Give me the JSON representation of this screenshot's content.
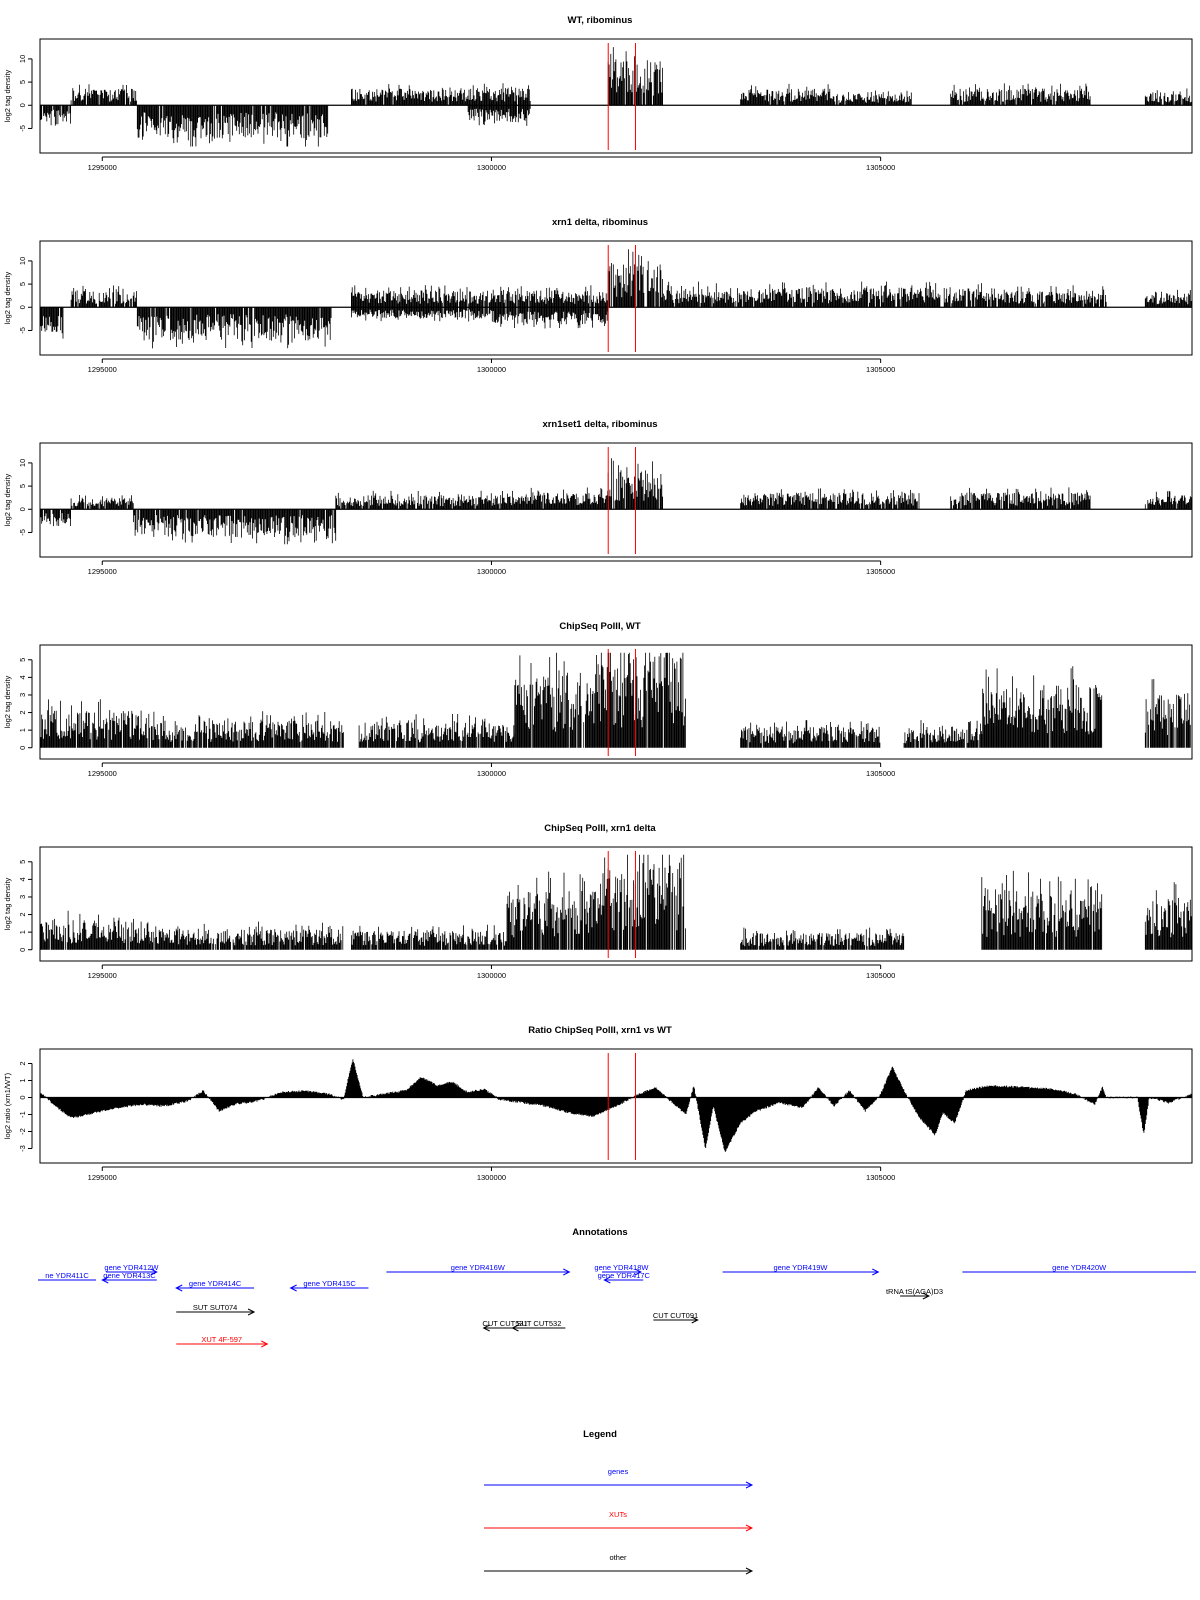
{
  "figure": {
    "panel_titles": [
      "WT, ribominus",
      "xrn1 delta, ribominus",
      "xrn1set1 delta, ribominus",
      "ChipSeq PolII, WT",
      "ChipSeq PolII, xrn1 delta",
      "Ratio ChipSeq PolII, xrn1 vs WT"
    ],
    "annotations_title": "Annotations",
    "legend_title": "Legend"
  },
  "colors": {
    "gene": "#0000ff",
    "xut": "#ff0000",
    "other": "#000000",
    "marker": "#ff0000",
    "trace": "#000000"
  },
  "chart_data": [
    {
      "type": "area",
      "title": "WT, ribominus",
      "ylabel": "log2 tag density",
      "xlim": [
        1294200,
        1309000
      ],
      "ylim": [
        -9,
        13
      ],
      "xticks": [
        1295000,
        1300000,
        1305000
      ],
      "yticks": [
        -5,
        0,
        5,
        10
      ],
      "markers_x": [
        1301500,
        1301850
      ],
      "baseline": true,
      "segments": [
        {
          "x": [
            1294200,
            1294600
          ],
          "bottom": -3
        },
        {
          "x": [
            1294600,
            1295450
          ],
          "top": 3
        },
        {
          "x": [
            1295450,
            1297900
          ],
          "bottom": -6
        },
        {
          "x": [
            1298200,
            1299700
          ],
          "top": 3
        },
        {
          "x": [
            1299700,
            1300500
          ],
          "top": 3,
          "bottom": -3
        },
        {
          "x": [
            1301500,
            1302200
          ],
          "top": 8
        },
        {
          "x": [
            1303200,
            1304400
          ],
          "top": 3
        },
        {
          "x": [
            1304400,
            1305400
          ],
          "top": 2
        },
        {
          "x": [
            1305900,
            1307700
          ],
          "top": 3
        },
        {
          "x": [
            1308400,
            1309000
          ],
          "top": 2.5
        }
      ]
    },
    {
      "type": "area",
      "title": "xrn1 delta, ribominus",
      "ylabel": "log2 tag density",
      "xlim": [
        1294200,
        1309000
      ],
      "ylim": [
        -9,
        13
      ],
      "xticks": [
        1295000,
        1300000,
        1305000
      ],
      "yticks": [
        -5,
        0,
        5,
        10
      ],
      "markers_x": [
        1301500,
        1301850
      ],
      "baseline": true,
      "segments": [
        {
          "x": [
            1294200,
            1294500
          ],
          "bottom": -5
        },
        {
          "x": [
            1294600,
            1295450
          ],
          "top": 3
        },
        {
          "x": [
            1295450,
            1297950
          ],
          "bottom": -6
        },
        {
          "x": [
            1298200,
            1300000
          ],
          "top": 3,
          "bottom": -2
        },
        {
          "x": [
            1300000,
            1301500
          ],
          "top": 3,
          "bottom": -3
        },
        {
          "x": [
            1301500,
            1302200
          ],
          "top": 8
        },
        {
          "x": [
            1302200,
            1304200
          ],
          "top": 3.5
        },
        {
          "x": [
            1304200,
            1306500
          ],
          "top": 3.5
        },
        {
          "x": [
            1306500,
            1307900
          ],
          "top": 3
        },
        {
          "x": [
            1308400,
            1309000
          ],
          "top": 2.5
        }
      ]
    },
    {
      "type": "area",
      "title": "xrn1set1 delta, ribominus",
      "ylabel": "log2 tag density",
      "xlim": [
        1294200,
        1309000
      ],
      "ylim": [
        -9,
        13
      ],
      "xticks": [
        1295000,
        1300000,
        1305000
      ],
      "yticks": [
        -5,
        0,
        5,
        10
      ],
      "markers_x": [
        1301500,
        1301850
      ],
      "baseline": true,
      "segments": [
        {
          "x": [
            1294200,
            1294600
          ],
          "bottom": -3
        },
        {
          "x": [
            1294600,
            1295400
          ],
          "top": 2
        },
        {
          "x": [
            1295400,
            1298000
          ],
          "bottom": -5
        },
        {
          "x": [
            1298000,
            1300500
          ],
          "top": 2.5
        },
        {
          "x": [
            1300500,
            1301500
          ],
          "top": 3
        },
        {
          "x": [
            1301500,
            1302200
          ],
          "top": 7
        },
        {
          "x": [
            1303200,
            1305500
          ],
          "top": 3
        },
        {
          "x": [
            1305900,
            1307700
          ],
          "top": 3
        },
        {
          "x": [
            1308400,
            1309000
          ],
          "top": 2.5
        }
      ]
    },
    {
      "type": "area",
      "title": "ChipSeq PolII, WT",
      "ylabel": "log2 tag density",
      "xlim": [
        1294200,
        1309000
      ],
      "ylim": [
        -0.3,
        5.5
      ],
      "xticks": [
        1295000,
        1300000,
        1305000
      ],
      "yticks": [
        0,
        1,
        2,
        3,
        4,
        5
      ],
      "markers_x": [
        1301500,
        1301850
      ],
      "baseline": false,
      "segments": [
        {
          "x": [
            1294200,
            1295500
          ],
          "top": 1.8
        },
        {
          "x": [
            1295500,
            1298100
          ],
          "top": 1.3
        },
        {
          "x": [
            1298300,
            1300300
          ],
          "top": 1.2
        },
        {
          "x": [
            1300300,
            1301400
          ],
          "top": 3.5
        },
        {
          "x": [
            1301400,
            1302500
          ],
          "top": 4.6
        },
        {
          "x": [
            1303200,
            1305000
          ],
          "top": 1
        },
        {
          "x": [
            1305300,
            1306300
          ],
          "top": 1
        },
        {
          "x": [
            1306300,
            1307850
          ],
          "top": 3
        },
        {
          "x": [
            1308400,
            1309000
          ],
          "top": 2.6
        }
      ]
    },
    {
      "type": "area",
      "title": "ChipSeq PolII, xrn1 delta",
      "ylabel": "log2 tag density",
      "xlim": [
        1294200,
        1309000
      ],
      "ylim": [
        -0.3,
        5.5
      ],
      "xticks": [
        1295000,
        1300000,
        1305000
      ],
      "yticks": [
        0,
        1,
        2,
        3,
        4,
        5
      ],
      "markers_x": [
        1301500,
        1301850
      ],
      "baseline": false,
      "segments": [
        {
          "x": [
            1294200,
            1295600
          ],
          "top": 1.4
        },
        {
          "x": [
            1295600,
            1298100
          ],
          "top": 1
        },
        {
          "x": [
            1298200,
            1300200
          ],
          "top": 0.9
        },
        {
          "x": [
            1300200,
            1301400
          ],
          "top": 2.8
        },
        {
          "x": [
            1301400,
            1302500
          ],
          "top": 4.2
        },
        {
          "x": [
            1303200,
            1305300
          ],
          "top": 0.8
        },
        {
          "x": [
            1306300,
            1307850
          ],
          "top": 2.9
        },
        {
          "x": [
            1308400,
            1309000
          ],
          "top": 2.4
        }
      ]
    },
    {
      "type": "area",
      "title": "Ratio ChipSeq PolII, xrn1 vs WT",
      "ylabel": "log2 ratio (xrn1/WT)",
      "xlim": [
        1294200,
        1309000
      ],
      "ylim": [
        -3.5,
        2.5
      ],
      "xticks": [
        1295000,
        1300000,
        1305000
      ],
      "yticks": [
        -3,
        -2,
        -1,
        0,
        1,
        2
      ],
      "markers_x": [
        1301500,
        1301850
      ],
      "baseline": true,
      "curve": [
        [
          1294200,
          0.3
        ],
        [
          1294400,
          -0.5
        ],
        [
          1294600,
          -1.2
        ],
        [
          1294900,
          -0.9
        ],
        [
          1295200,
          -0.6
        ],
        [
          1295500,
          -0.4
        ],
        [
          1295800,
          -0.5
        ],
        [
          1296100,
          -0.2
        ],
        [
          1296300,
          0.4
        ],
        [
          1296500,
          -0.8
        ],
        [
          1296700,
          -0.4
        ],
        [
          1297000,
          -0.2
        ],
        [
          1297300,
          0.3
        ],
        [
          1297600,
          0.4
        ],
        [
          1297900,
          0.2
        ],
        [
          1298100,
          -0.1
        ],
        [
          1298220,
          2.3
        ],
        [
          1298350,
          0.0
        ],
        [
          1298600,
          0.2
        ],
        [
          1298900,
          0.4
        ],
        [
          1299100,
          1.2
        ],
        [
          1299300,
          0.7
        ],
        [
          1299500,
          0.9
        ],
        [
          1299700,
          0.3
        ],
        [
          1299900,
          0.5
        ],
        [
          1300100,
          -0.1
        ],
        [
          1300400,
          -0.3
        ],
        [
          1300700,
          -0.5
        ],
        [
          1301000,
          -0.9
        ],
        [
          1301300,
          -1.1
        ],
        [
          1301600,
          -0.5
        ],
        [
          1301900,
          0.2
        ],
        [
          1302100,
          0.6
        ],
        [
          1302300,
          -0.2
        ],
        [
          1302500,
          -1.0
        ],
        [
          1302600,
          0.7
        ],
        [
          1302750,
          -3.0
        ],
        [
          1302850,
          -0.5
        ],
        [
          1303000,
          -3.2
        ],
        [
          1303200,
          -1.5
        ],
        [
          1303400,
          -0.8
        ],
        [
          1303700,
          -0.3
        ],
        [
          1304000,
          -0.6
        ],
        [
          1304200,
          0.6
        ],
        [
          1304400,
          -0.5
        ],
        [
          1304600,
          0.4
        ],
        [
          1304800,
          -0.8
        ],
        [
          1305000,
          0.2
        ],
        [
          1305150,
          1.8
        ],
        [
          1305300,
          0.4
        ],
        [
          1305500,
          -1.2
        ],
        [
          1305700,
          -2.2
        ],
        [
          1305800,
          -0.9
        ],
        [
          1305950,
          -1.5
        ],
        [
          1306100,
          0.4
        ],
        [
          1306400,
          0.7
        ],
        [
          1306800,
          0.6
        ],
        [
          1307200,
          0.5
        ],
        [
          1307500,
          0.2
        ],
        [
          1307750,
          -0.4
        ],
        [
          1307850,
          0.6
        ],
        [
          1307900,
          0.0
        ],
        [
          1308300,
          0.0
        ],
        [
          1308380,
          -2.2
        ],
        [
          1308450,
          0.0
        ],
        [
          1308700,
          -0.3
        ],
        [
          1309000,
          0.2
        ]
      ]
    }
  ],
  "annotations": {
    "xlim": [
      1294200,
      1309000
    ],
    "features": [
      {
        "label": "ne YDR411C",
        "kind": "gene",
        "x0": 1293900,
        "x1": 1294920,
        "dir": "none",
        "row": 0
      },
      {
        "label": "gene YDR412W",
        "kind": "gene",
        "x0": 1295050,
        "x1": 1295700,
        "dir": "right",
        "row": -1
      },
      {
        "label": "gene YDR413C",
        "kind": "gene",
        "x0": 1295000,
        "x1": 1295700,
        "dir": "left",
        "row": 0
      },
      {
        "label": "gene YDR414C",
        "kind": "gene",
        "x0": 1295950,
        "x1": 1296950,
        "dir": "left",
        "row": 1
      },
      {
        "label": "gene YDR415C",
        "kind": "gene",
        "x0": 1297420,
        "x1": 1298420,
        "dir": "left",
        "row": 1
      },
      {
        "label": "gene YDR416W",
        "kind": "gene",
        "x0": 1298650,
        "x1": 1301000,
        "dir": "right",
        "row": -1
      },
      {
        "label": "gene YDR418W",
        "kind": "gene",
        "x0": 1301420,
        "x1": 1301920,
        "dir": "right",
        "row": -1
      },
      {
        "label": "gene YDR417C",
        "kind": "gene",
        "x0": 1301450,
        "x1": 1301950,
        "dir": "left",
        "row": 0
      },
      {
        "label": "gene YDR419W",
        "kind": "gene",
        "x0": 1302970,
        "x1": 1304970,
        "dir": "right",
        "row": -1
      },
      {
        "label": "tRNA tS(AGA)D3",
        "kind": "other",
        "x0": 1305250,
        "x1": 1305620,
        "dir": "right",
        "row": 2
      },
      {
        "label": "gene YDR420W",
        "kind": "gene",
        "x0": 1306050,
        "x1": 1309200,
        "dir": "none",
        "row": -1
      },
      {
        "label": "SUT SUT074",
        "kind": "other",
        "x0": 1295950,
        "x1": 1296950,
        "dir": "right",
        "row": 4
      },
      {
        "label": "XUT 4F-597",
        "kind": "xut",
        "x0": 1295950,
        "x1": 1297120,
        "dir": "right",
        "row": 8
      },
      {
        "label": "CUT CUT531",
        "kind": "other",
        "x0": 1299900,
        "x1": 1300450,
        "dir": "left",
        "row": 6
      },
      {
        "label": "SUT CUT532",
        "kind": "other",
        "x0": 1300270,
        "x1": 1300950,
        "dir": "left",
        "row": 6
      },
      {
        "label": "CUT CUT091",
        "kind": "other",
        "x0": 1302080,
        "x1": 1302650,
        "dir": "right",
        "row": 5
      }
    ]
  },
  "legend": {
    "items": [
      {
        "label": "genes",
        "kind": "gene"
      },
      {
        "label": "XUTs",
        "kind": "xut"
      },
      {
        "label": "other",
        "kind": "other"
      }
    ]
  }
}
